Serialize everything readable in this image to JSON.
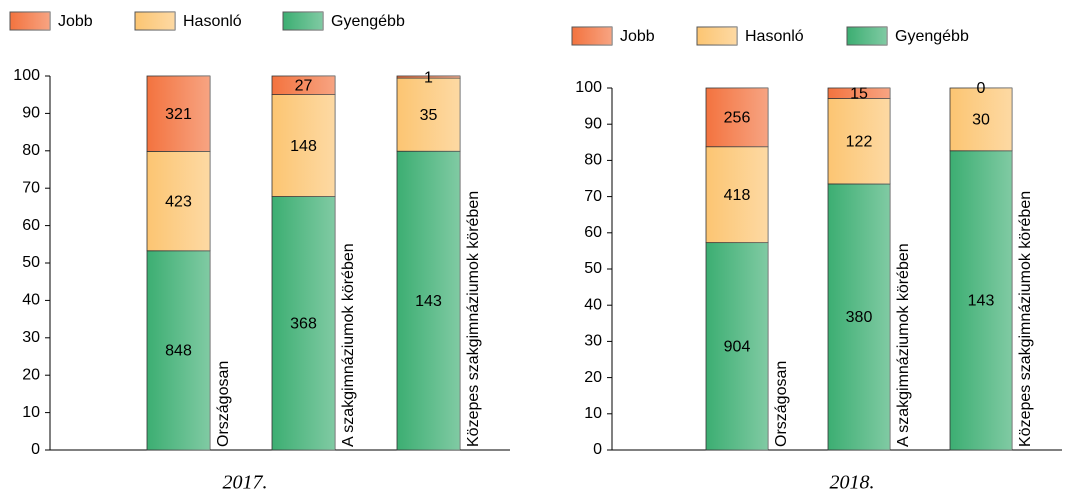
{
  "chart_data": [
    {
      "type": "bar",
      "stacked": "percent",
      "title": "2017.",
      "categories": [
        "Országosan",
        "A szakgimnáziumok körében",
        "Közepes szakgimnáziumok körében"
      ],
      "series": [
        {
          "name": "Gyengébb",
          "color": "#3cae72",
          "values": [
            848,
            368,
            143
          ]
        },
        {
          "name": "Hasonló",
          "color": "#fcc572",
          "values": [
            423,
            148,
            35
          ]
        },
        {
          "name": "Jobb",
          "color": "#f3733f",
          "values": [
            321,
            27,
            1
          ]
        }
      ],
      "legend_order": [
        2,
        1,
        0
      ],
      "ylim": [
        0,
        100
      ],
      "yticks": [
        0,
        10,
        20,
        30,
        40,
        50,
        60,
        70,
        80,
        90,
        100
      ]
    },
    {
      "type": "bar",
      "stacked": "percent",
      "title": "2018.",
      "categories": [
        "Országosan",
        "A szakgimnáziumok körében",
        "Közepes szakgimnáziumok körében"
      ],
      "series": [
        {
          "name": "Gyengébb",
          "color": "#3cae72",
          "values": [
            904,
            380,
            143
          ]
        },
        {
          "name": "Hasonló",
          "color": "#fcc572",
          "values": [
            418,
            122,
            30
          ]
        },
        {
          "name": "Jobb",
          "color": "#f3733f",
          "values": [
            256,
            15,
            0
          ]
        }
      ],
      "legend_order": [
        2,
        1,
        0
      ],
      "ylim": [
        0,
        100
      ],
      "yticks": [
        0,
        10,
        20,
        30,
        40,
        50,
        60,
        70,
        80,
        90,
        100
      ]
    }
  ]
}
